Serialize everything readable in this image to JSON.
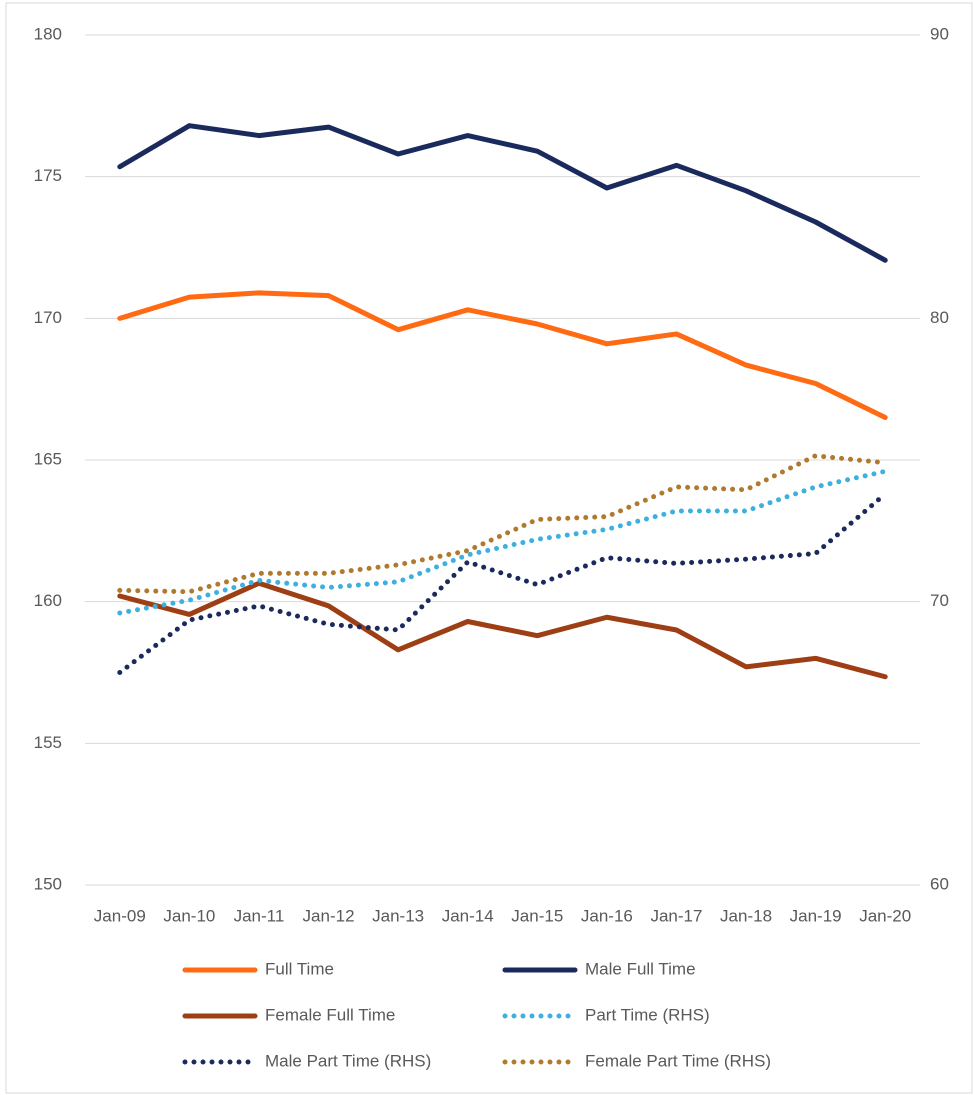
{
  "chart_data": {
    "type": "line",
    "categories": [
      "Jan-09",
      "Jan-10",
      "Jan-11",
      "Jan-12",
      "Jan-13",
      "Jan-14",
      "Jan-15",
      "Jan-16",
      "Jan-17",
      "Jan-18",
      "Jan-19",
      "Jan-20"
    ],
    "ylim": [
      150,
      180
    ],
    "yticks": [
      150,
      155,
      160,
      165,
      170,
      175,
      180
    ],
    "y2lim": [
      60,
      90
    ],
    "y2ticks": [
      60,
      70,
      80,
      90
    ],
    "grid": true,
    "legend": "bottom",
    "series": [
      {
        "name": "Full Time",
        "color": "#ff6a13",
        "style": "solid",
        "values": [
          170.0,
          170.75,
          170.9,
          170.8,
          169.6,
          170.3,
          169.8,
          169.1,
          169.45,
          168.35,
          167.7,
          166.5
        ]
      },
      {
        "name": "Male Full Time",
        "color": "#1b2a5c",
        "style": "solid",
        "values": [
          175.35,
          176.8,
          176.45,
          176.75,
          175.8,
          176.45,
          175.9,
          174.6,
          175.4,
          174.5,
          173.4,
          172.05
        ]
      },
      {
        "name": "Female Full Time",
        "color": "#9e3e14",
        "style": "solid",
        "values": [
          160.2,
          159.55,
          160.65,
          159.85,
          158.3,
          159.3,
          158.8,
          159.45,
          159.0,
          157.7,
          158.0,
          157.35
        ]
      },
      {
        "name": "Part Time (RHS)",
        "color": "#3db0e0",
        "style": "dotted",
        "axis": "y2",
        "values": [
          69.6,
          70.05,
          70.75,
          70.5,
          70.7,
          71.65,
          72.2,
          72.55,
          73.2,
          73.2,
          74.05,
          74.6
        ]
      },
      {
        "name": "Male Part Time (RHS)",
        "color": "#1b2a5c",
        "style": "dotted",
        "axis": "y2",
        "values": [
          67.5,
          69.35,
          69.85,
          69.2,
          69.0,
          71.4,
          70.6,
          71.55,
          71.35,
          71.5,
          71.7,
          73.8
        ]
      },
      {
        "name": "Female Part Time (RHS)",
        "color": "#b07a2e",
        "style": "dotted",
        "axis": "y2",
        "values": [
          70.4,
          70.35,
          71.0,
          71.0,
          71.3,
          71.8,
          72.9,
          73.0,
          74.05,
          73.95,
          75.15,
          74.9
        ]
      }
    ]
  }
}
